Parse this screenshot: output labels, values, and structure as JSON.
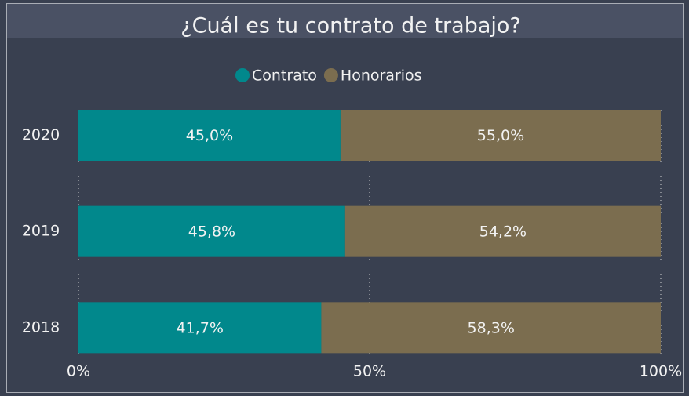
{
  "chart_data": {
    "type": "stacked_barh",
    "title": "¿Cuál es tu contrato de trabajo?",
    "categories": [
      "2020",
      "2019",
      "2018"
    ],
    "series": [
      {
        "name": "Contrato",
        "color": "#01888c",
        "values": [
          45.0,
          45.8,
          41.7
        ],
        "value_labels": [
          "45,0%",
          "45,8%",
          "41,7%"
        ]
      },
      {
        "name": "Honorarios",
        "color": "#7b6d4f",
        "values": [
          55.0,
          54.2,
          58.3
        ],
        "value_labels": [
          "55,0%",
          "54,2%",
          "58,3%"
        ]
      }
    ],
    "xlim": [
      0,
      100
    ],
    "xticks": [
      {
        "value": 0,
        "label": "0%"
      },
      {
        "value": 50,
        "label": "50%"
      },
      {
        "value": 100,
        "label": "100%"
      }
    ],
    "grid": true,
    "legend": "top"
  }
}
